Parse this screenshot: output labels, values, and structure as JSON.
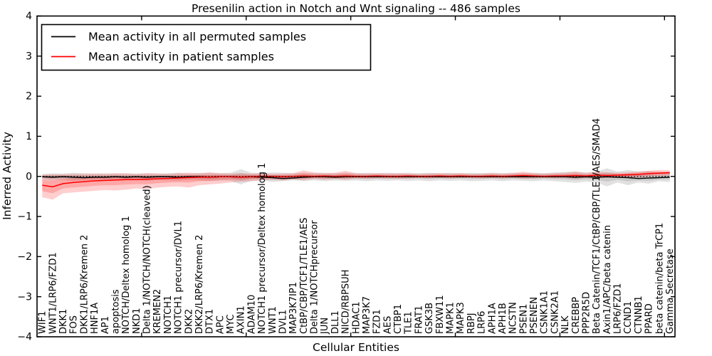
{
  "title": "Presenilin action in Notch and Wnt signaling -- 486 samples",
  "axes": {
    "xlabel": "Cellular Entities",
    "ylabel": "Inferred Activity",
    "ylim": [
      -4,
      4
    ],
    "ytick_labels": [
      "-4",
      "-3",
      "-2",
      "-1",
      "0",
      "1",
      "2",
      "3",
      "4"
    ],
    "ytick_values": [
      -4,
      -3,
      -2,
      -1,
      0,
      1,
      2,
      3,
      4
    ],
    "x_major_tick_positions": [
      10,
      20,
      30,
      40,
      50,
      60
    ]
  },
  "legend": {
    "entries": [
      {
        "label": "Mean activity in all permuted samples",
        "color": "#000000"
      },
      {
        "label": "Mean activity in patient samples",
        "color": "#ff0000"
      }
    ]
  },
  "chart_data": {
    "type": "line",
    "title": "Presenilin action in Notch and Wnt signaling -- 486 samples",
    "xlabel": "Cellular Entities",
    "ylabel": "Inferred Activity",
    "ylim": [
      -4,
      4
    ],
    "grid": false,
    "legend_position": "upper-left",
    "zero_line": {
      "y": 0,
      "style": "dotted",
      "color": "#000000"
    },
    "categories": [
      "WIF1",
      "WNT1/LRP6/FZD1",
      "DKK1",
      "FOS",
      "DKK1/LRP6/Kremen 2",
      "HNF1A",
      "AP1",
      "apoptosis",
      "NOTCH/Deltex homolog 1",
      "NKD1",
      "Delta 1/NOTCH/NOTCH(cleaved)",
      "KREMEN2",
      "NOTCH1",
      "NOTCH1 precursor/DVL1",
      "DKK2",
      "DKK2/LRP6/Kremen 2",
      "DTX1",
      "APC",
      "MYC",
      "AXIN1",
      "ADAM10",
      "NOTCH1 precursor/Deltex homolog 1",
      "WNT1",
      "DVL1",
      "MAP3K7IP1",
      "CtBP/CBP/TCF1/TLE1/AES",
      "Delta 1/NOTCHprecursor",
      "JUN",
      "DLL1",
      "NICD/RBPSUH",
      "HDAC1",
      "MAP3K7",
      "FZD1",
      "AES",
      "CTBP1",
      "TLE1",
      "FRAT1",
      "GSK3B",
      "FBXW11",
      "MAPK1",
      "MAPK3",
      "RBPJ",
      "LRP6",
      "APH1A",
      "APH1B",
      "NCSTN",
      "PSEN1",
      "PSENEN",
      "CSNK1A1",
      "CSNK2A1",
      "NLK",
      "CREBBP",
      "PPP2R5D",
      "Beta Catenin/TCF1/CtBP/CBP/TLE1/AES/SMAD4",
      "Axin1/APC/beta catenin",
      "LRP6/FZD1",
      "CCND1",
      "CTNNB1",
      "PPARD",
      "beta catenin/beta TrCP1",
      "Gamma Secretase"
    ],
    "series": [
      {
        "name": "Mean activity in all permuted samples",
        "color": "#000000",
        "band_color": "rgba(120,120,120,0.22)",
        "values": [
          -0.01,
          -0.02,
          -0.01,
          -0.02,
          -0.03,
          -0.02,
          -0.02,
          -0.01,
          -0.02,
          -0.01,
          -0.02,
          -0.01,
          -0.01,
          -0.02,
          -0.01,
          -0.01,
          -0.02,
          -0.01,
          -0.01,
          -0.02,
          -0.01,
          -0.02,
          -0.03,
          -0.05,
          -0.04,
          -0.02,
          -0.01,
          -0.01,
          -0.02,
          -0.01,
          -0.01,
          -0.01,
          -0.01,
          -0.01,
          -0.01,
          -0.01,
          -0.01,
          -0.01,
          -0.01,
          -0.01,
          -0.01,
          -0.01,
          -0.01,
          -0.01,
          -0.01,
          -0.01,
          -0.01,
          -0.01,
          -0.01,
          -0.01,
          -0.01,
          -0.02,
          -0.01,
          -0.02,
          -0.01,
          -0.02,
          -0.03,
          -0.05,
          -0.04,
          -0.03,
          -0.02
        ],
        "band_upper": [
          0.06,
          0.08,
          0.07,
          0.09,
          0.08,
          0.07,
          0.08,
          0.07,
          0.08,
          0.07,
          0.08,
          0.07,
          0.08,
          0.09,
          0.07,
          0.08,
          0.09,
          0.08,
          0.09,
          0.18,
          0.09,
          0.08,
          0.1,
          0.09,
          0.08,
          0.09,
          0.08,
          0.09,
          0.08,
          0.09,
          0.08,
          0.09,
          0.08,
          0.09,
          0.08,
          0.09,
          0.08,
          0.09,
          0.08,
          0.09,
          0.08,
          0.09,
          0.08,
          0.09,
          0.08,
          0.09,
          0.08,
          0.09,
          0.08,
          0.1,
          0.11,
          0.12,
          0.1,
          0.12,
          0.2,
          0.12,
          0.16,
          0.12,
          0.14,
          0.1,
          0.12
        ],
        "band_lower": [
          -0.08,
          -0.1,
          -0.09,
          -0.12,
          -0.1,
          -0.09,
          -0.11,
          -0.09,
          -0.1,
          -0.09,
          -0.11,
          -0.09,
          -0.1,
          -0.11,
          -0.09,
          -0.1,
          -0.12,
          -0.1,
          -0.11,
          -0.2,
          -0.11,
          -0.1,
          -0.14,
          -0.12,
          -0.1,
          -0.11,
          -0.1,
          -0.12,
          -0.1,
          -0.11,
          -0.1,
          -0.12,
          -0.1,
          -0.11,
          -0.1,
          -0.11,
          -0.1,
          -0.12,
          -0.1,
          -0.11,
          -0.1,
          -0.12,
          -0.11,
          -0.1,
          -0.12,
          -0.1,
          -0.11,
          -0.12,
          -0.1,
          -0.12,
          -0.14,
          -0.16,
          -0.13,
          -0.15,
          -0.25,
          -0.15,
          -0.22,
          -0.15,
          -0.18,
          -0.12,
          -0.14
        ]
      },
      {
        "name": "Mean activity in patient samples",
        "color": "#ff0000",
        "band_color": "rgba(255,30,30,0.22)",
        "values": [
          -0.22,
          -0.26,
          -0.18,
          -0.15,
          -0.13,
          -0.11,
          -0.1,
          -0.09,
          -0.08,
          -0.08,
          -0.07,
          -0.06,
          -0.05,
          -0.04,
          -0.03,
          -0.02,
          -0.02,
          -0.01,
          -0.01,
          -0.02,
          -0.01,
          0.0,
          0.0,
          -0.01,
          0.0,
          0.01,
          0.0,
          0.01,
          0.0,
          0.01,
          0.0,
          0.0,
          0.01,
          0.0,
          0.0,
          0.01,
          0.0,
          0.0,
          0.01,
          0.0,
          0.01,
          0.0,
          0.0,
          0.01,
          0.0,
          0.01,
          0.02,
          0.01,
          0.0,
          0.01,
          0.01,
          0.02,
          0.01,
          0.03,
          0.02,
          0.03,
          0.04,
          0.05,
          0.07,
          0.08,
          0.09
        ],
        "band_upper": [
          0.04,
          0.05,
          0.05,
          0.06,
          0.06,
          0.07,
          0.06,
          0.08,
          0.07,
          0.06,
          0.08,
          0.07,
          0.06,
          0.08,
          0.09,
          0.08,
          0.1,
          0.08,
          0.07,
          0.08,
          0.07,
          0.08,
          0.06,
          0.07,
          0.08,
          0.15,
          0.1,
          0.08,
          0.09,
          0.14,
          0.08,
          0.07,
          0.08,
          0.07,
          0.08,
          0.07,
          0.06,
          0.07,
          0.08,
          0.07,
          0.08,
          0.06,
          0.07,
          0.08,
          0.07,
          0.08,
          0.12,
          0.08,
          0.07,
          0.08,
          0.09,
          0.12,
          0.08,
          0.12,
          0.1,
          0.09,
          0.1,
          0.12,
          0.14,
          0.16,
          0.15
        ],
        "band_lower": [
          -0.52,
          -0.58,
          -0.42,
          -0.4,
          -0.38,
          -0.36,
          -0.34,
          -0.35,
          -0.33,
          -0.3,
          -0.32,
          -0.28,
          -0.26,
          -0.25,
          -0.28,
          -0.22,
          -0.2,
          -0.18,
          -0.15,
          -0.13,
          -0.12,
          -0.1,
          -0.08,
          -0.1,
          -0.07,
          -0.1,
          -0.06,
          -0.08,
          -0.06,
          -0.08,
          -0.05,
          -0.06,
          -0.05,
          -0.05,
          -0.06,
          -0.05,
          -0.04,
          -0.05,
          -0.04,
          -0.05,
          -0.04,
          -0.04,
          -0.05,
          -0.04,
          -0.05,
          -0.04,
          -0.06,
          -0.05,
          -0.04,
          -0.05,
          -0.04,
          -0.06,
          -0.04,
          -0.05,
          -0.04,
          -0.04,
          -0.03,
          -0.02,
          0.0,
          0.01,
          0.02
        ]
      }
    ]
  }
}
